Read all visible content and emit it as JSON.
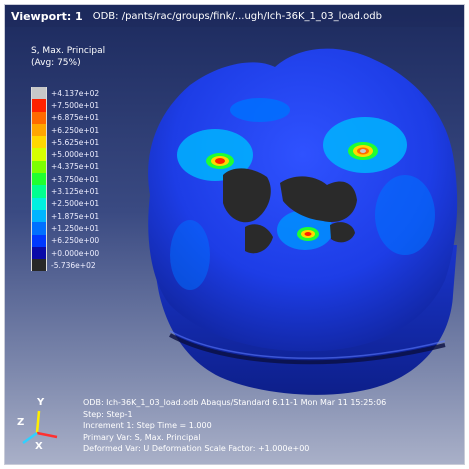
{
  "viewport": {
    "label": "Viewport: 1",
    "odb_path": "ODB: /pants/rac/groups/fink/...ugh/Ich-36K_1_03_load.odb"
  },
  "legend": {
    "title_line1": "S, Max. Principal",
    "title_line2": "(Avg: 75%)",
    "values": [
      "+4.137e+02",
      "+7.500e+01",
      "+6.875e+01",
      "+6.250e+01",
      "+5.625e+01",
      "+5.000e+01",
      "+4.375e+01",
      "+3.750e+01",
      "+3.125e+01",
      "+2.500e+01",
      "+1.875e+01",
      "+1.250e+01",
      "+6.250e+00",
      "+0.000e+00",
      "-5.736e+02"
    ],
    "colors": [
      "#c8c8c8",
      "#ff2200",
      "#ff6a00",
      "#ffa600",
      "#ffd800",
      "#d6ff00",
      "#7cff00",
      "#20ff30",
      "#00ff90",
      "#00f0e0",
      "#00b4ff",
      "#0070ff",
      "#0038ff",
      "#0a0aa8",
      "#282828"
    ]
  },
  "info": {
    "line1": "ODB: Ich-36K_1_03_load.odb    Abaqus/Standard 6.11-1    Mon Mar 11 15:25:06",
    "line2": "Step: Step-1",
    "line3": "Increment     1: Step Time =    1.000",
    "line4": "Primary Var: S, Max. Principal",
    "line5": "Deformed Var: U   Deformation Scale Factor: +1.000e+00"
  },
  "triad": {
    "x": "X",
    "y": "Y",
    "z": "Z"
  },
  "colors": {
    "background_top": "#1c2a5e",
    "background_bottom": "#a9b0c8",
    "mesh_blue": "#1a3ae0",
    "mesh_dark": "#2a2a2a"
  }
}
